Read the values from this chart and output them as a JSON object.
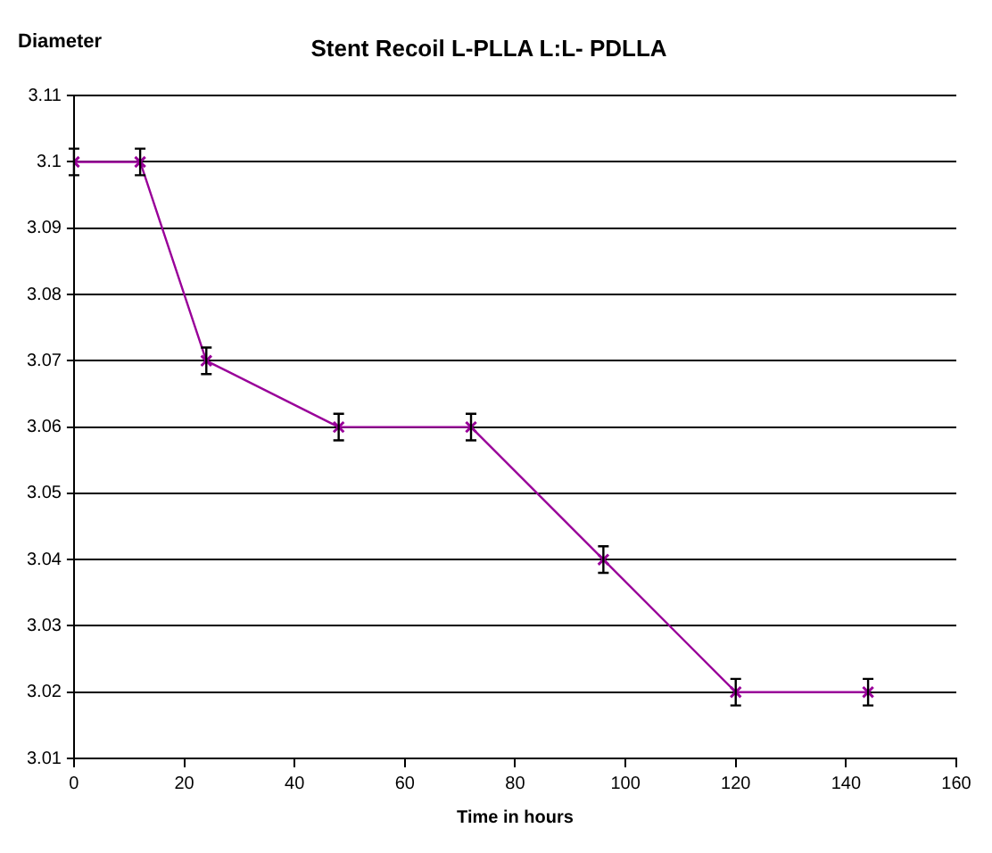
{
  "chart_data": {
    "type": "line",
    "title": "Stent Recoil L-PLLA L:L- PDLLA",
    "xlabel": "Time in hours",
    "ylabel": "Diameter",
    "x": [
      0,
      12,
      24,
      48,
      72,
      96,
      120,
      144
    ],
    "series": [
      {
        "color": "#990099",
        "values": [
          3.1,
          3.1,
          3.07,
          3.06,
          3.06,
          3.04,
          3.02,
          3.02
        ],
        "errors": [
          0.002,
          0.002,
          0.002,
          0.002,
          0.002,
          0.002,
          0.002,
          0.002
        ]
      }
    ],
    "xlim": [
      0,
      160
    ],
    "xticks": [
      0,
      20,
      40,
      60,
      80,
      100,
      120,
      140,
      160
    ],
    "ylim": [
      3.01,
      3.11
    ],
    "yticks": [
      3.01,
      3.02,
      3.03,
      3.04,
      3.05,
      3.06,
      3.07,
      3.08,
      3.09,
      3.1,
      3.11
    ],
    "grid": "y",
    "legend": false,
    "marker": "cross",
    "line_style": "solid"
  }
}
